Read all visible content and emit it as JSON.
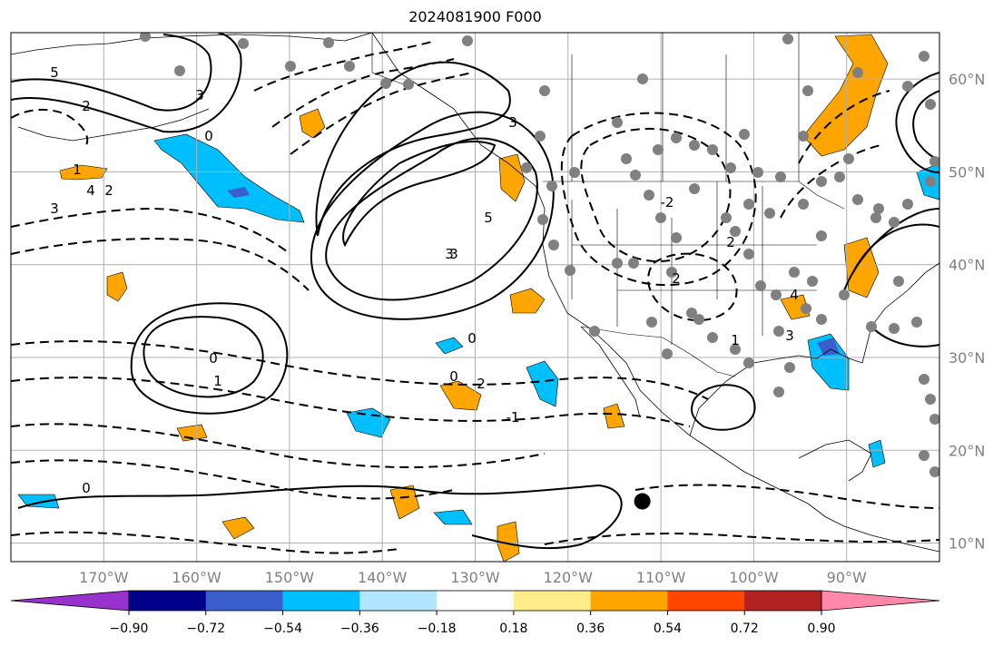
{
  "title": "2024081900 F000",
  "map": {
    "lon_min": -180,
    "lon_max": -80,
    "lat_min": 8,
    "lat_max": 65,
    "lon_ticks": [
      {
        "lon": -170,
        "label": "170°W"
      },
      {
        "lon": -160,
        "label": "160°W"
      },
      {
        "lon": -150,
        "label": "150°W"
      },
      {
        "lon": -140,
        "label": "140°W"
      },
      {
        "lon": -130,
        "label": "130°W"
      },
      {
        "lon": -120,
        "label": "120°W"
      },
      {
        "lon": -110,
        "label": "110°W"
      },
      {
        "lon": -100,
        "label": "100°W"
      },
      {
        "lon": -90,
        "label": "90°W"
      }
    ],
    "lat_ticks": [
      {
        "lat": 60,
        "label": "60°N"
      },
      {
        "lat": 50,
        "label": "50°N"
      },
      {
        "lat": 40,
        "label": "40°N"
      },
      {
        "lat": 30,
        "label": "30°N"
      },
      {
        "lat": 20,
        "label": "20°N"
      },
      {
        "lat": 10,
        "label": "10°N"
      }
    ],
    "marker": {
      "lon": -112,
      "lat": 14.5
    }
  },
  "contour_labels": [
    "5",
    "3",
    "2",
    "0",
    "1",
    "4",
    "3",
    "2",
    "3",
    "1",
    "0",
    "2",
    "3",
    "-2",
    "-1",
    "0",
    "2",
    "1",
    "0",
    "3",
    "5",
    "0",
    "2",
    "4",
    "3"
  ],
  "colorbar": {
    "colors": [
      "#9932cc",
      "#00008b",
      "#3a5fcd",
      "#00bfff",
      "#b2e5ff",
      "#ffffff",
      "#ffec8b",
      "#ffa500",
      "#ff4500",
      "#b22222",
      "#ff88aa"
    ],
    "tick_labels": [
      "−0.90",
      "−0.72",
      "−0.54",
      "−0.36",
      "−0.18",
      "0.18",
      "0.36",
      "0.54",
      "0.72",
      "0.90"
    ]
  }
}
